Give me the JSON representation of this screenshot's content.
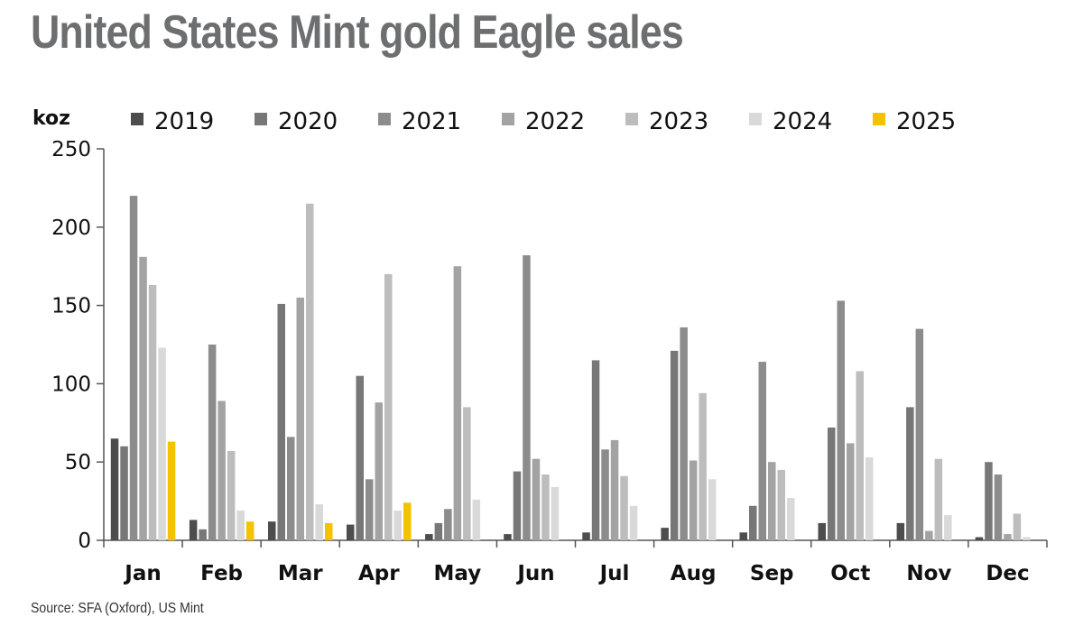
{
  "title": "United States Mint gold Eagle sales",
  "source": "Source: SFA (Oxford), US Mint",
  "chart_data": {
    "type": "bar",
    "title": "United States Mint gold Eagle sales",
    "ylabel": "koz",
    "xlabel": "",
    "ylim": [
      0,
      250
    ],
    "yticks": [
      0,
      50,
      100,
      150,
      200,
      250
    ],
    "legend_position": "top",
    "grid": false,
    "categories": [
      "Jan",
      "Feb",
      "Mar",
      "Apr",
      "May",
      "Jun",
      "Jul",
      "Aug",
      "Sep",
      "Oct",
      "Nov",
      "Dec"
    ],
    "series": [
      {
        "name": "2019",
        "color": "#4d4d4d",
        "values": [
          65,
          13,
          12,
          10,
          4,
          4,
          5,
          8,
          5,
          11,
          11,
          2
        ]
      },
      {
        "name": "2020",
        "color": "#777777",
        "values": [
          60,
          7,
          151,
          105,
          11,
          44,
          115,
          121,
          22,
          72,
          85,
          50
        ]
      },
      {
        "name": "2021",
        "color": "#8c8c8c",
        "values": [
          220,
          125,
          66,
          39,
          20,
          182,
          58,
          136,
          114,
          153,
          135,
          42
        ]
      },
      {
        "name": "2022",
        "color": "#a3a3a3",
        "values": [
          181,
          89,
          155,
          88,
          175,
          52,
          64,
          51,
          50,
          62,
          6,
          4
        ]
      },
      {
        "name": "2023",
        "color": "#bdbdbd",
        "values": [
          163,
          57,
          215,
          170,
          85,
          42,
          41,
          94,
          45,
          108,
          52,
          17
        ]
      },
      {
        "name": "2024",
        "color": "#d9d9d9",
        "values": [
          123,
          19,
          23,
          19,
          26,
          34,
          22,
          39,
          27,
          53,
          16,
          2
        ]
      },
      {
        "name": "2025",
        "color": "#f5c200",
        "values": [
          63,
          12,
          11,
          24,
          null,
          null,
          null,
          null,
          null,
          null,
          null,
          null
        ]
      }
    ]
  }
}
